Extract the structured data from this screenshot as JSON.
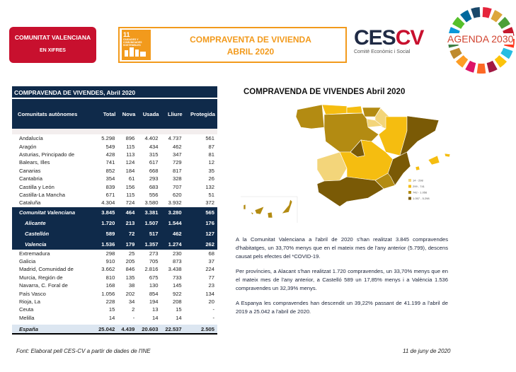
{
  "header": {
    "badge_line1": "COMUNITAT VALENCIANA",
    "badge_line2": "EN XIFRES",
    "title_line1": "COMPRAVENTA DE VIVIENDA",
    "title_line2": "ABRIL 2020",
    "sdg_number": "11",
    "sdg_text": "CIUDADES Y COMUNIDADES SOSTENIBLES",
    "cescv_logo_a": "CES",
    "cescv_logo_b": "CV",
    "cescv_subtitle": "Comitè Econòmic i Social",
    "agenda_logo": "AGENDA 2030"
  },
  "table": {
    "caption": "COMPRAVENDA DE VIVENDES, Abril 2020",
    "columns": [
      "Comunitats autònomes",
      "Total",
      "Nova",
      "Usada",
      "Lliure",
      "Protegida"
    ],
    "rows_top": [
      [
        "Andalucía",
        "5.298",
        "896",
        "4.402",
        "4.737",
        "561"
      ],
      [
        "Aragón",
        "549",
        "115",
        "434",
        "462",
        "87"
      ],
      [
        "Asturias, Principado de",
        "428",
        "113",
        "315",
        "347",
        "81"
      ],
      [
        "Balears, Illes",
        "741",
        "124",
        "617",
        "729",
        "12"
      ],
      [
        "Canarias",
        "852",
        "184",
        "668",
        "817",
        "35"
      ],
      [
        "Cantabria",
        "354",
        "61",
        "293",
        "328",
        "26"
      ],
      [
        "Castilla y León",
        "839",
        "156",
        "683",
        "707",
        "132"
      ],
      [
        "Castilla-La Mancha",
        "671",
        "115",
        "556",
        "620",
        "51"
      ],
      [
        "Cataluña",
        "4.304",
        "724",
        "3.580",
        "3.932",
        "372"
      ]
    ],
    "rows_cv": [
      [
        "Comunitat Valenciana",
        "3.845",
        "464",
        "3.381",
        "3.280",
        "565"
      ],
      [
        "Alicante",
        "1.720",
        "213",
        "1.507",
        "1.544",
        "176"
      ],
      [
        "Castellón",
        "589",
        "72",
        "517",
        "462",
        "127"
      ],
      [
        "Valencia",
        "1.536",
        "179",
        "1.357",
        "1.274",
        "262"
      ]
    ],
    "rows_bottom": [
      [
        "Extremadura",
        "298",
        "25",
        "273",
        "230",
        "68"
      ],
      [
        "Galicia",
        "910",
        "205",
        "705",
        "873",
        "37"
      ],
      [
        "Madrid, Comunidad de",
        "3.662",
        "846",
        "2.816",
        "3.438",
        "224"
      ],
      [
        "Murcia, Región de",
        "810",
        "135",
        "675",
        "733",
        "77"
      ],
      [
        "Navarra, C. Foral de",
        "168",
        "38",
        "130",
        "145",
        "23"
      ],
      [
        "País Vasco",
        "1.056",
        "202",
        "854",
        "922",
        "134"
      ],
      [
        "Rioja, La",
        "228",
        "34",
        "194",
        "208",
        "20"
      ],
      [
        "Ceuta",
        "15",
        "2",
        "13",
        "15",
        "-"
      ],
      [
        "Melilla",
        "14",
        "-",
        "14",
        "14",
        "-"
      ]
    ],
    "total": [
      "España",
      "25.042",
      "4.439",
      "20.603",
      "22.537",
      "2.505"
    ]
  },
  "map": {
    "title": "COMPRAVENDA DE VIVENDES Abril 2020",
    "legend": [
      {
        "label": "14 - 298",
        "color": "#f3d57a"
      },
      {
        "label": "299 - 741",
        "color": "#f5bd10"
      },
      {
        "label": "742 - 1.056",
        "color": "#b38b12"
      },
      {
        "label": "1.057 - 5.298",
        "color": "#7a5a06"
      }
    ]
  },
  "description": [
    "A la Comunitat Valenciana a l'abril de 2020 s'han realitzat 3.845 compravendes d'habitatges, un 33,70% menys que en el mateix mes de l'any anterior (5.799), descens causat pels efectes del *COVID-19.",
    "Per províncies, a Alacant s'han realitzat 1.720 compravendes, un 33,70% menys que en el mateix mes de l'any anterior, a Castelló 589 un 17,85% menys i a València 1.536 compravendes un 32,39% menys.",
    "A Espanya les compravendes han descendit un 39,22% passant de 41.199 a l'abril de 2019 a 25.042 a l'abril de 2020."
  ],
  "footer": {
    "source": "Font: Elaborat pell CES-CV a partir de dades de l'INE",
    "date": "11 de juny de 2020"
  }
}
